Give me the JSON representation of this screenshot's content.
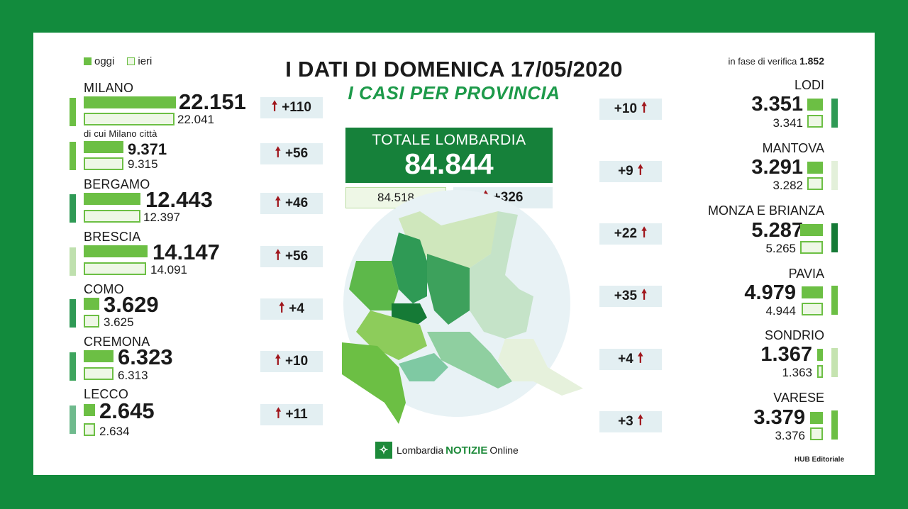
{
  "legend": {
    "today": "oggi",
    "yesterday": "ieri"
  },
  "header": {
    "title": "I DATI DI DOMENICA 17/05/2020",
    "subtitle": "I CASI PER PROVINCIA",
    "verifica_label": "in fase di verifica",
    "verifica_value": "1.852"
  },
  "total": {
    "label": "TOTALE LOMBARDIA",
    "value": "84.844",
    "previous": "84.518",
    "delta": "+326"
  },
  "left_provinces": [
    {
      "name": "MILANO",
      "today": "22.151",
      "yesterday": "22.041",
      "delta": "+110"
    },
    {
      "name": "di cui Milano città",
      "today": "9.371",
      "yesterday": "9.315",
      "delta": "+56"
    },
    {
      "name": "BERGAMO",
      "today": "12.443",
      "yesterday": "12.397",
      "delta": "+46"
    },
    {
      "name": "BRESCIA",
      "today": "14.147",
      "yesterday": "14.091",
      "delta": "+56"
    },
    {
      "name": "COMO",
      "today": "3.629",
      "yesterday": "3.625",
      "delta": "+4"
    },
    {
      "name": "CREMONA",
      "today": "6.323",
      "yesterday": "6.313",
      "delta": "+10"
    },
    {
      "name": "LECCO",
      "today": "2.645",
      "yesterday": "2.634",
      "delta": "+11"
    }
  ],
  "right_provinces": [
    {
      "name": "LODI",
      "today": "3.351",
      "yesterday": "3.341",
      "delta": "+10"
    },
    {
      "name": "MANTOVA",
      "today": "3.291",
      "yesterday": "3.282",
      "delta": "+9"
    },
    {
      "name": "MONZA E BRIANZA",
      "today": "5.287",
      "yesterday": "5.265",
      "delta": "+22"
    },
    {
      "name": "PAVIA",
      "today": "4.979",
      "yesterday": "4.944",
      "delta": "+35"
    },
    {
      "name": "SONDRIO",
      "today": "1.367",
      "yesterday": "1.363",
      "delta": "+4"
    },
    {
      "name": "VARESE",
      "today": "3.379",
      "yesterday": "3.376",
      "delta": "+3"
    }
  ],
  "footer": {
    "logo_word1": "Lombardia",
    "logo_word2": "NOTIZIE",
    "logo_word3": "Online",
    "credit": "HUB Editoriale"
  },
  "colors": {
    "frame": "#128b3d",
    "today_bar": "#6cbf44",
    "total_box": "#16813a",
    "up_arrow": "#a0161c"
  }
}
